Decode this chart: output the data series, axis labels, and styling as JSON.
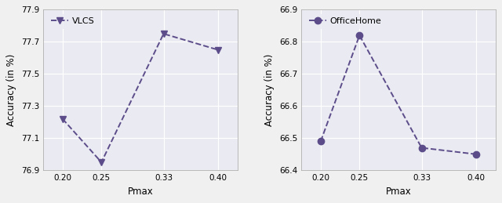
{
  "vlcs": {
    "x": [
      0.2,
      0.25,
      0.33,
      0.4
    ],
    "y": [
      77.22,
      76.95,
      77.75,
      77.65
    ],
    "label": "VLCS",
    "marker": "v",
    "ylim": [
      76.9,
      77.9
    ],
    "yticks": [
      76.9,
      77.1,
      77.3,
      77.5,
      77.7,
      77.9
    ],
    "ylabel": "Accuracy (in %)"
  },
  "officehome": {
    "x": [
      0.2,
      0.25,
      0.33,
      0.4
    ],
    "y": [
      66.49,
      66.82,
      66.47,
      66.45
    ],
    "label": "OfficeHome",
    "marker": "o",
    "ylim": [
      66.4,
      66.9
    ],
    "yticks": [
      66.4,
      66.5,
      66.6,
      66.7,
      66.8,
      66.9
    ],
    "ylabel": "Accuracy (in %)"
  },
  "xlabel": "Pmax",
  "line_color": "#5c4d8a",
  "line_style": "--",
  "linewidth": 1.4,
  "markersize": 6,
  "background_color": "#eaeaf2",
  "grid_color": "#ffffff",
  "xticks": [
    0.2,
    0.25,
    0.33,
    0.4
  ],
  "xticklabels": [
    "0.20",
    "0.25",
    "0.33",
    "0.40"
  ],
  "tick_fontsize": 7.5,
  "label_fontsize": 8.5,
  "legend_fontsize": 8
}
